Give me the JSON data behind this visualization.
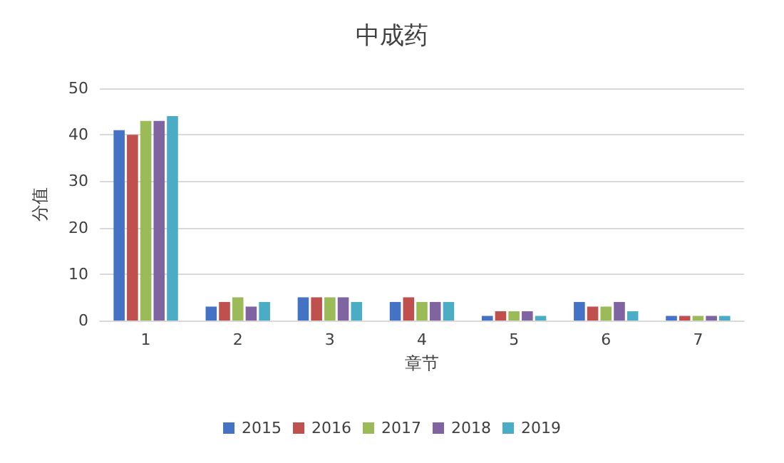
{
  "chart_data": {
    "type": "bar",
    "title": "中成药",
    "xlabel": "章节",
    "ylabel": "分值",
    "categories": [
      "1",
      "2",
      "3",
      "4",
      "5",
      "6",
      "7"
    ],
    "series": [
      {
        "name": "2015",
        "color": "#4472c4",
        "values": [
          41,
          3,
          5,
          4,
          1,
          4,
          1
        ]
      },
      {
        "name": "2016",
        "color": "#c0504d",
        "values": [
          40,
          4,
          5,
          5,
          2,
          3,
          1
        ]
      },
      {
        "name": "2017",
        "color": "#9bbb59",
        "values": [
          43,
          5,
          5,
          4,
          2,
          3,
          1
        ]
      },
      {
        "name": "2018",
        "color": "#8064a2",
        "values": [
          43,
          3,
          5,
          4,
          2,
          4,
          1
        ]
      },
      {
        "name": "2019",
        "color": "#4bacc6",
        "values": [
          44,
          4,
          4,
          4,
          1,
          2,
          1
        ]
      }
    ],
    "ylim": [
      0,
      50
    ],
    "yticks": [
      0,
      10,
      20,
      30,
      40,
      50
    ],
    "grid": "y",
    "legend": "bottom"
  }
}
